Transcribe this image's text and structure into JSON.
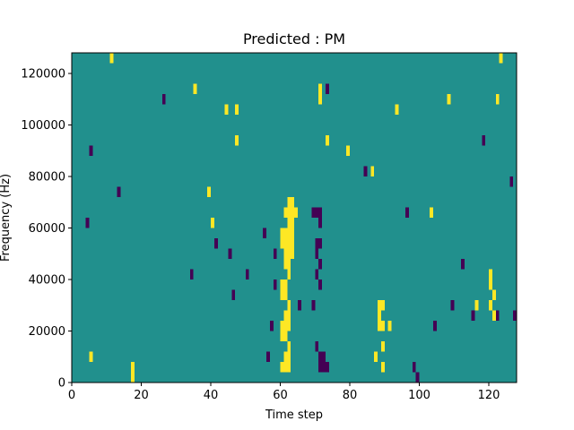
{
  "chart_data": {
    "type": "heatmap",
    "title": "Predicted : PM",
    "xlabel": "Time step",
    "ylabel": "Frequency (Hz)",
    "xlim": [
      0,
      128
    ],
    "ylim": [
      0,
      128000
    ],
    "x_ticks": [
      0,
      20,
      40,
      60,
      80,
      100,
      120
    ],
    "y_ticks": [
      0,
      20000,
      40000,
      60000,
      80000,
      100000,
      120000
    ],
    "x_tick_labels": [
      "0",
      "20",
      "40",
      "60",
      "80",
      "100",
      "120"
    ],
    "y_tick_labels": [
      "0",
      "20000",
      "40000",
      "60000",
      "80000",
      "100000",
      "120000"
    ],
    "cell_size": {
      "time_steps": 1,
      "frequency_hz": 4000
    },
    "value_levels": [
      -1,
      0,
      1
    ],
    "background_value": 0,
    "colors": {
      "-1": "#440154",
      "0": "#21908d",
      "1": "#fde725"
    },
    "grid": false,
    "legend": "none",
    "cells": [
      [
        62,
        68000,
        1
      ],
      [
        63,
        68000,
        1
      ],
      [
        61,
        64000,
        1
      ],
      [
        62,
        64000,
        1
      ],
      [
        63,
        64000,
        1
      ],
      [
        64,
        64000,
        1
      ],
      [
        62,
        60000,
        1
      ],
      [
        63,
        60000,
        1
      ],
      [
        60,
        56000,
        1
      ],
      [
        61,
        56000,
        1
      ],
      [
        62,
        56000,
        1
      ],
      [
        63,
        56000,
        1
      ],
      [
        60,
        52000,
        1
      ],
      [
        61,
        52000,
        1
      ],
      [
        62,
        52000,
        1
      ],
      [
        63,
        52000,
        1
      ],
      [
        61,
        48000,
        1
      ],
      [
        62,
        48000,
        1
      ],
      [
        63,
        48000,
        1
      ],
      [
        61,
        44000,
        1
      ],
      [
        62,
        44000,
        1
      ],
      [
        62,
        40000,
        1
      ],
      [
        60,
        36000,
        1
      ],
      [
        61,
        36000,
        1
      ],
      [
        60,
        32000,
        1
      ],
      [
        61,
        32000,
        1
      ],
      [
        62,
        28000,
        1
      ],
      [
        61,
        24000,
        1
      ],
      [
        62,
        24000,
        1
      ],
      [
        60,
        20000,
        1
      ],
      [
        61,
        20000,
        1
      ],
      [
        62,
        20000,
        1
      ],
      [
        60,
        16000,
        1
      ],
      [
        61,
        16000,
        1
      ],
      [
        62,
        12000,
        1
      ],
      [
        61,
        8000,
        1
      ],
      [
        62,
        8000,
        1
      ],
      [
        60,
        4000,
        1
      ],
      [
        61,
        4000,
        1
      ],
      [
        62,
        4000,
        1
      ],
      [
        69,
        64000,
        -1
      ],
      [
        70,
        64000,
        -1
      ],
      [
        71,
        64000,
        -1
      ],
      [
        71,
        60000,
        -1
      ],
      [
        70,
        52000,
        -1
      ],
      [
        71,
        52000,
        -1
      ],
      [
        70,
        48000,
        -1
      ],
      [
        71,
        44000,
        -1
      ],
      [
        70,
        40000,
        -1
      ],
      [
        71,
        36000,
        -1
      ],
      [
        70,
        12000,
        -1
      ],
      [
        71,
        8000,
        -1
      ],
      [
        72,
        8000,
        -1
      ],
      [
        71,
        4000,
        -1
      ],
      [
        72,
        4000,
        -1
      ],
      [
        73,
        4000,
        -1
      ],
      [
        58,
        48000,
        -1
      ],
      [
        58,
        36000,
        -1
      ],
      [
        57,
        20000,
        -1
      ],
      [
        56,
        8000,
        -1
      ],
      [
        55,
        56000,
        -1
      ],
      [
        45,
        48000,
        -1
      ],
      [
        46,
        32000,
        -1
      ],
      [
        65,
        28000,
        -1
      ],
      [
        69,
        28000,
        -1
      ],
      [
        99,
        0,
        -1
      ],
      [
        98,
        4000,
        -1
      ],
      [
        5,
        88000,
        -1
      ],
      [
        109,
        28000,
        -1
      ],
      [
        112,
        44000,
        -1
      ],
      [
        115,
        24000,
        -1
      ],
      [
        122,
        24000,
        -1
      ],
      [
        127,
        24000,
        -1
      ],
      [
        4,
        60000,
        -1
      ],
      [
        13,
        72000,
        -1
      ],
      [
        26,
        108000,
        -1
      ],
      [
        34,
        40000,
        -1
      ],
      [
        41,
        52000,
        -1
      ],
      [
        50,
        40000,
        -1
      ],
      [
        73,
        112000,
        -1
      ],
      [
        84,
        80000,
        -1
      ],
      [
        96,
        64000,
        -1
      ],
      [
        104,
        20000,
        -1
      ],
      [
        118,
        92000,
        -1
      ],
      [
        126,
        76000,
        -1
      ],
      [
        71,
        112000,
        1
      ],
      [
        71,
        108000,
        1
      ],
      [
        73,
        92000,
        1
      ],
      [
        79,
        88000,
        1
      ],
      [
        86,
        80000,
        1
      ],
      [
        88,
        28000,
        1
      ],
      [
        89,
        28000,
        1
      ],
      [
        88,
        24000,
        1
      ],
      [
        88,
        20000,
        1
      ],
      [
        89,
        20000,
        1
      ],
      [
        91,
        20000,
        1
      ],
      [
        89,
        12000,
        1
      ],
      [
        87,
        8000,
        1
      ],
      [
        89,
        4000,
        1
      ],
      [
        17,
        0,
        1
      ],
      [
        17,
        4000,
        1
      ],
      [
        5,
        8000,
        1
      ],
      [
        39,
        72000,
        1
      ],
      [
        40,
        60000,
        1
      ],
      [
        44,
        104000,
        1
      ],
      [
        47,
        104000,
        1
      ],
      [
        47,
        92000,
        1
      ],
      [
        35,
        112000,
        1
      ],
      [
        11,
        124000,
        1
      ],
      [
        123,
        124000,
        1
      ],
      [
        122,
        108000,
        1
      ],
      [
        120,
        40000,
        1
      ],
      [
        120,
        36000,
        1
      ],
      [
        121,
        32000,
        1
      ],
      [
        120,
        28000,
        1
      ],
      [
        121,
        24000,
        1
      ],
      [
        108,
        108000,
        1
      ],
      [
        103,
        64000,
        1
      ],
      [
        116,
        28000,
        1
      ],
      [
        93,
        104000,
        1
      ]
    ]
  }
}
